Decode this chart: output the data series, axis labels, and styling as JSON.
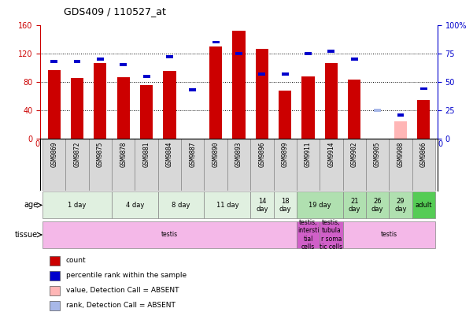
{
  "title": "GDS409 / 110527_at",
  "samples": [
    "GSM9869",
    "GSM9872",
    "GSM9875",
    "GSM9878",
    "GSM9881",
    "GSM9884",
    "GSM9887",
    "GSM9890",
    "GSM9893",
    "GSM9896",
    "GSM9899",
    "GSM9911",
    "GSM9914",
    "GSM9902",
    "GSM9905",
    "GSM9908",
    "GSM9866"
  ],
  "red_values": [
    97,
    85,
    107,
    87,
    75,
    95,
    0,
    130,
    152,
    126,
    68,
    88,
    107,
    83,
    0,
    25,
    55
  ],
  "blue_values": [
    68,
    68,
    70,
    65,
    55,
    72,
    43,
    85,
    75,
    57,
    57,
    75,
    77,
    70,
    25,
    21,
    44
  ],
  "absent_red": [
    false,
    false,
    false,
    false,
    false,
    false,
    false,
    false,
    false,
    false,
    false,
    false,
    false,
    false,
    false,
    true,
    false
  ],
  "absent_blue": [
    false,
    false,
    false,
    false,
    false,
    false,
    false,
    false,
    false,
    false,
    false,
    false,
    false,
    false,
    true,
    false,
    false
  ],
  "ylim_left": [
    0,
    160
  ],
  "ylim_right": [
    0,
    100
  ],
  "yticks_left": [
    0,
    40,
    80,
    120,
    160
  ],
  "ytick_labels_right": [
    "0",
    "25",
    "50",
    "75",
    "100%"
  ],
  "age_groups": [
    {
      "label": "1 day",
      "span": [
        0,
        3
      ],
      "color": "#e0f0e0"
    },
    {
      "label": "4 day",
      "span": [
        3,
        5
      ],
      "color": "#e0f0e0"
    },
    {
      "label": "8 day",
      "span": [
        5,
        7
      ],
      "color": "#e0f0e0"
    },
    {
      "label": "11 day",
      "span": [
        7,
        9
      ],
      "color": "#e0f0e0"
    },
    {
      "label": "14\nday",
      "span": [
        9,
        10
      ],
      "color": "#e0f0e0"
    },
    {
      "label": "18\nday",
      "span": [
        10,
        11
      ],
      "color": "#e0f0e0"
    },
    {
      "label": "19 day",
      "span": [
        11,
        13
      ],
      "color": "#b0e0b0"
    },
    {
      "label": "21\nday",
      "span": [
        13,
        14
      ],
      "color": "#b0e0b0"
    },
    {
      "label": "26\nday",
      "span": [
        14,
        15
      ],
      "color": "#b0e0b0"
    },
    {
      "label": "29\nday",
      "span": [
        15,
        16
      ],
      "color": "#b0e0b0"
    },
    {
      "label": "adult",
      "span": [
        16,
        17
      ],
      "color": "#55cc55"
    }
  ],
  "tissue_groups": [
    {
      "label": "testis",
      "span": [
        0,
        11
      ],
      "color": "#f4b8e8"
    },
    {
      "label": "testis,\nintersti\ntial\ncells",
      "span": [
        11,
        12
      ],
      "color": "#d060c8"
    },
    {
      "label": "testis,\ntubula\nr soma\ntic cells",
      "span": [
        12,
        13
      ],
      "color": "#d060c8"
    },
    {
      "label": "testis",
      "span": [
        13,
        17
      ],
      "color": "#f4b8e8"
    }
  ],
  "bar_width": 0.55,
  "red_color": "#cc0000",
  "blue_color": "#0000cc",
  "absent_red_color": "#ffb6b6",
  "absent_blue_color": "#a8b8e8",
  "bg_color": "#ffffff",
  "left_axis_color": "#cc0000",
  "right_axis_color": "#0000cc",
  "xticklabel_bg": "#d8d8d8"
}
